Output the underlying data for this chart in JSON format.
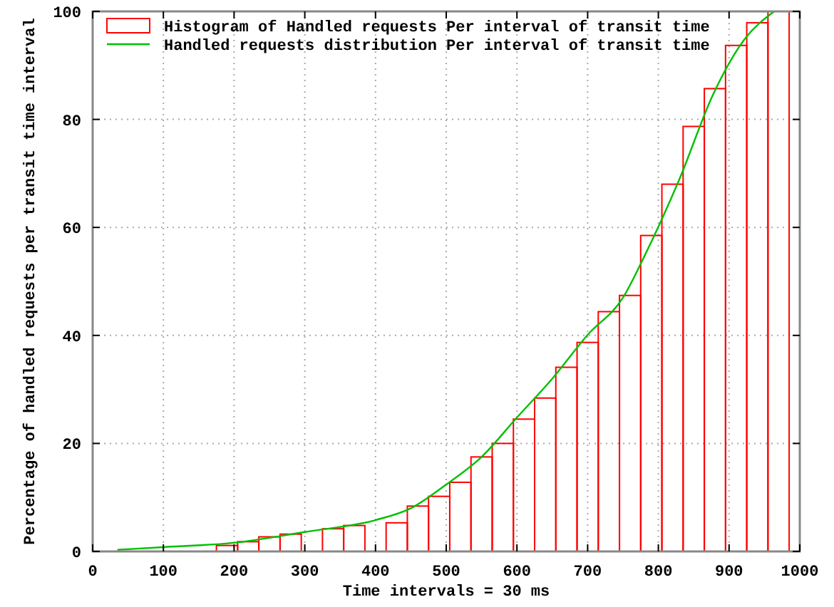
{
  "chart_data": {
    "type": "histogram",
    "xlabel": "Time intervals = 30 ms",
    "ylabel": "Percentage of handled requests per transit time interval",
    "bins": [
      175,
      205,
      235,
      265,
      295,
      325,
      355,
      385,
      415,
      445,
      475,
      505,
      535,
      565,
      595,
      625,
      655,
      685,
      715,
      745,
      775,
      805,
      835,
      865,
      895,
      925,
      955,
      985
    ],
    "series": [
      {
        "name": "Histogram of Handled requests Per interval of transit time",
        "color": "#ff0000",
        "values": [
          1.1,
          1.8,
          2.7,
          3.2,
          0,
          4.2,
          4.8,
          0,
          5.3,
          8.4,
          10.2,
          12.8,
          17.5,
          20.0,
          24.5,
          28.4,
          34.1,
          38.7,
          44.4,
          47.4,
          58.5,
          68,
          78.7,
          85.7,
          93.7,
          97.9,
          100
        ]
      },
      {
        "name": "Handled requests distribution Per interval of transit time",
        "color": "#00c000",
        "type": "line",
        "x": [
          35,
          100,
          200,
          300,
          400,
          450,
          500,
          550,
          600,
          650,
          700,
          750,
          780,
          830,
          877,
          921,
          964
        ],
        "values": [
          0.3,
          0.8,
          1.6,
          3.6,
          5.8,
          8,
          12.4,
          17.5,
          24.8,
          32,
          40.1,
          47,
          54.6,
          69,
          84.5,
          94.7,
          100
        ]
      }
    ],
    "xlim": [
      0,
      1000
    ],
    "xticks": [
      0,
      100,
      200,
      300,
      400,
      500,
      600,
      700,
      800,
      900,
      1000
    ],
    "ylim": [
      0,
      100
    ],
    "yticks": [
      0,
      20,
      40,
      60,
      80,
      100
    ],
    "grid": true,
    "legend": "top left"
  }
}
